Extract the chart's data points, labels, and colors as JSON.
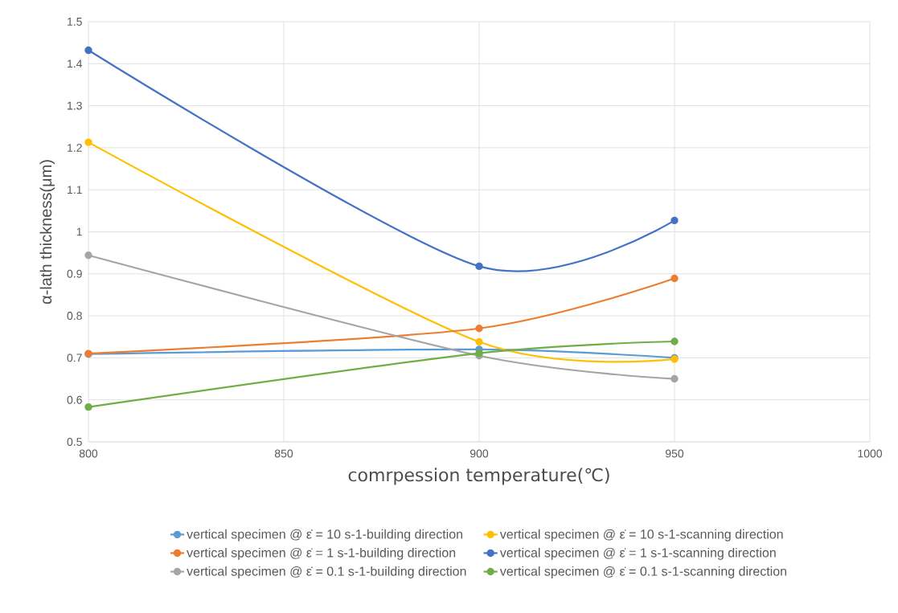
{
  "chart_data": {
    "type": "line",
    "xlabel": "comrpession temperature(℃)",
    "ylabel": "α-lath thickness(μm)",
    "x": [
      800,
      900,
      950
    ],
    "xlim": [
      800,
      1000
    ],
    "xticks": [
      800,
      850,
      900,
      950,
      1000
    ],
    "ylim": [
      0.5,
      1.5
    ],
    "yticks": [
      0.5,
      0.6,
      0.7,
      0.8,
      0.9,
      1,
      1.1,
      1.2,
      1.3,
      1.4,
      1.5
    ],
    "grid": true,
    "legend": "bottom",
    "marker": "circle",
    "line_style": "solid",
    "series": [
      {
        "name": "vertical specimen @  ε̇ = 10 s-1-building direction",
        "color": "#5b9bd5",
        "values": [
          0.709,
          0.72,
          0.7
        ]
      },
      {
        "name": "vertical specimen @  ε̇ = 10 s-1-scanning direction",
        "color": "#ffc000",
        "values": [
          1.213,
          0.738,
          0.697
        ]
      },
      {
        "name": "vertical specimen @  ε̇ = 1 s-1-building direction",
        "color": "#ed7d31",
        "values": [
          0.71,
          0.77,
          0.889
        ]
      },
      {
        "name": "vertical specimen @  ε̇ = 1 s-1-scanning direction",
        "color": "#4472c4",
        "values": [
          1.432,
          0.918,
          1.027
        ]
      },
      {
        "name": "vertical specimen @  ε̇ = 0.1 s-1-building direction",
        "color": "#a5a5a5",
        "values": [
          0.944,
          0.705,
          0.65
        ]
      },
      {
        "name": "vertical specimen @  ε̇ = 0.1 s-1-scanning direction",
        "color": "#70ad47",
        "values": [
          0.583,
          0.711,
          0.739
        ]
      }
    ]
  }
}
